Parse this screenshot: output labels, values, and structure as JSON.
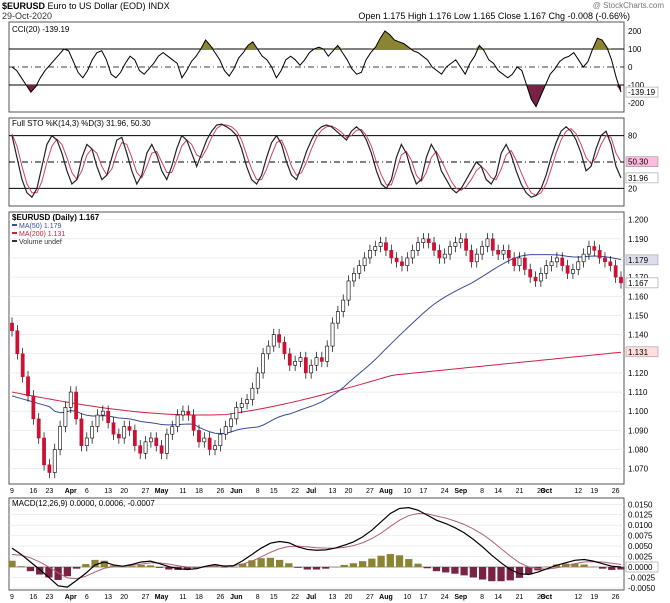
{
  "header": {
    "symbol": "$EURUSD",
    "name": "Euro to US Dollar (EOD)",
    "exchange": "INDX",
    "date": "29-Oct-2020",
    "quote": "Open 1.175  High 1.176  Low 1.165  Close 1.167  Chg -0.008 (-0.66%)",
    "credit": "@ StockCharts.com"
  },
  "colors": {
    "up": "#ffffff",
    "down": "#cc1133",
    "wick": "#000000",
    "ma50": "#3a4a99",
    "ma200": "#cc2244",
    "olive": "#8b8432",
    "maroon": "#7a2246",
    "grid": "#dde3ee"
  },
  "chart_data": [
    {
      "type": "line",
      "panel": "CCI",
      "label": "CCI(20) -139.19",
      "value_label": "-139.19",
      "ylim": [
        -250,
        250
      ],
      "ticks": [
        200,
        100,
        0,
        -100,
        -200
      ],
      "ref_lines": [
        100,
        0,
        -100
      ],
      "values": [
        0,
        -20,
        -60,
        -100,
        -140,
        -110,
        -60,
        -20,
        10,
        40,
        70,
        100,
        90,
        30,
        -30,
        -60,
        -20,
        40,
        80,
        90,
        40,
        -40,
        -60,
        -30,
        20,
        60,
        40,
        -20,
        -40,
        -10,
        20,
        60,
        80,
        60,
        40,
        20,
        -60,
        -20,
        30,
        60,
        100,
        150,
        120,
        80,
        40,
        -20,
        -50,
        -10,
        50,
        80,
        120,
        140,
        100,
        60,
        40,
        0,
        -60,
        -20,
        40,
        60,
        40,
        10,
        40,
        80,
        100,
        110,
        100,
        60,
        90,
        120,
        80,
        40,
        -10,
        -40,
        -30,
        40,
        80,
        110,
        160,
        200,
        180,
        150,
        140,
        130,
        110,
        90,
        80,
        60,
        40,
        0,
        -20,
        -40,
        0,
        20,
        40,
        0,
        -40,
        20,
        60,
        120,
        90,
        40,
        20,
        -20,
        -40,
        -60,
        -40,
        0,
        -20,
        -100,
        -180,
        -220,
        -160,
        -100,
        -40,
        -10,
        30,
        50,
        60,
        80,
        40,
        0,
        30,
        100,
        160,
        150,
        110,
        40,
        -60,
        -139.19
      ]
    },
    {
      "type": "line",
      "panel": "Full STO",
      "label": "Full STO %K(14,3) %D(3) 31.96, 50.30",
      "k_label": "31.96",
      "d_label": "50.30",
      "ylim": [
        0,
        100
      ],
      "ticks": [
        80,
        50,
        20
      ],
      "ref_lines": [
        80,
        50,
        20
      ],
      "k": [
        80,
        55,
        30,
        15,
        10,
        20,
        45,
        70,
        80,
        75,
        60,
        40,
        25,
        30,
        55,
        70,
        65,
        45,
        30,
        35,
        55,
        75,
        78,
        60,
        40,
        25,
        35,
        60,
        70,
        58,
        40,
        30,
        45,
        65,
        80,
        75,
        60,
        45,
        60,
        75,
        85,
        92,
        93,
        90,
        86,
        80,
        65,
        45,
        30,
        25,
        35,
        55,
        72,
        80,
        70,
        50,
        35,
        30,
        45,
        62,
        75,
        85,
        90,
        92,
        90,
        85,
        80,
        75,
        85,
        90,
        85,
        75,
        60,
        40,
        25,
        20,
        30,
        55,
        70,
        60,
        40,
        25,
        30,
        55,
        70,
        60,
        40,
        30,
        20,
        15,
        20,
        30,
        40,
        50,
        45,
        30,
        25,
        35,
        60,
        70,
        58,
        40,
        25,
        15,
        10,
        12,
        20,
        35,
        55,
        72,
        85,
        90,
        85,
        75,
        60,
        40,
        45,
        65,
        80,
        85,
        70,
        45,
        31.96
      ],
      "d": [
        82,
        68,
        45,
        25,
        15,
        15,
        28,
        50,
        68,
        76,
        70,
        55,
        38,
        30,
        40,
        58,
        65,
        60,
        45,
        35,
        42,
        60,
        72,
        70,
        55,
        38,
        32,
        45,
        60,
        62,
        50,
        38,
        38,
        52,
        68,
        75,
        70,
        58,
        55,
        65,
        78,
        88,
        92,
        92,
        90,
        85,
        75,
        58,
        42,
        30,
        30,
        42,
        58,
        72,
        75,
        62,
        45,
        35,
        38,
        50,
        65,
        78,
        86,
        90,
        91,
        88,
        84,
        78,
        80,
        86,
        87,
        80,
        68,
        50,
        35,
        24,
        24,
        40,
        58,
        62,
        52,
        35,
        28,
        38,
        55,
        62,
        52,
        40,
        28,
        20,
        18,
        22,
        30,
        40,
        45,
        40,
        32,
        30,
        42,
        58,
        63,
        52,
        38,
        25,
        15,
        12,
        15,
        25,
        42,
        60,
        75,
        85,
        88,
        82,
        70,
        55,
        48,
        55,
        70,
        80,
        78,
        60,
        50.3
      ]
    },
    {
      "type": "candlestick",
      "panel": "Price",
      "label": "$EURUSD (Daily) 1.167",
      "legend": [
        "MA(50) 1.179",
        "MA(200) 1.131",
        "Volume undef"
      ],
      "ylim": [
        1.062,
        1.204
      ],
      "ticks": [
        1.2,
        1.19,
        1.18,
        1.17,
        1.16,
        1.15,
        1.14,
        1.13,
        1.12,
        1.11,
        1.1,
        1.09,
        1.08,
        1.07
      ],
      "close_label": "1.167",
      "ma50_label": "1.179",
      "ma200_label": "1.131",
      "x_labels": [
        [
          "9",
          0
        ],
        [
          "16",
          5
        ],
        [
          "23",
          10
        ],
        [
          "Apr",
          15
        ],
        [
          "6",
          20
        ],
        [
          "13",
          25
        ],
        [
          "20",
          30
        ],
        [
          "27",
          35
        ],
        [
          "May",
          40
        ],
        [
          "11",
          45
        ],
        [
          "18",
          50
        ],
        [
          "26",
          55
        ],
        [
          "Jun",
          60
        ],
        [
          "8",
          65
        ],
        [
          "15",
          70
        ],
        [
          "22",
          75
        ],
        [
          "Jul",
          80
        ],
        [
          "13",
          85
        ],
        [
          "20",
          90
        ],
        [
          "27",
          95
        ],
        [
          "Aug",
          100
        ],
        [
          "10",
          105
        ],
        [
          "17",
          110
        ],
        [
          "24",
          115
        ],
        [
          "Sep",
          120
        ],
        [
          "8",
          125
        ],
        [
          "14",
          130
        ],
        [
          "21",
          135
        ],
        [
          "28",
          140
        ],
        [
          "Oct",
          142
        ],
        [
          "12",
          150
        ],
        [
          "19",
          155
        ],
        [
          "26",
          160
        ]
      ],
      "close": [
        1.142,
        1.13,
        1.118,
        1.108,
        1.096,
        1.086,
        1.072,
        1.068,
        1.08,
        1.092,
        1.102,
        1.11,
        1.096,
        1.082,
        1.086,
        1.092,
        1.098,
        1.1,
        1.094,
        1.088,
        1.086,
        1.092,
        1.09,
        1.082,
        1.078,
        1.084,
        1.086,
        1.082,
        1.078,
        1.088,
        1.092,
        1.098,
        1.1,
        1.098,
        1.09,
        1.084,
        1.086,
        1.08,
        1.082,
        1.088,
        1.092,
        1.096,
        1.102,
        1.104,
        1.106,
        1.112,
        1.12,
        1.13,
        1.134,
        1.14,
        1.136,
        1.13,
        1.124,
        1.126,
        1.128,
        1.12,
        1.124,
        1.128,
        1.126,
        1.134,
        1.146,
        1.152,
        1.158,
        1.168,
        1.172,
        1.176,
        1.18,
        1.184,
        1.186,
        1.188,
        1.184,
        1.18,
        1.178,
        1.176,
        1.18,
        1.184,
        1.188,
        1.19,
        1.188,
        1.184,
        1.18,
        1.182,
        1.186,
        1.188,
        1.19,
        1.184,
        1.178,
        1.182,
        1.186,
        1.19,
        1.184,
        1.182,
        1.184,
        1.18,
        1.176,
        1.18,
        1.174,
        1.17,
        1.168,
        1.172,
        1.176,
        1.178,
        1.18,
        1.176,
        1.172,
        1.174,
        1.178,
        1.182,
        1.186,
        1.184,
        1.18,
        1.178,
        1.176,
        1.17,
        1.167
      ]
    },
    {
      "type": "line",
      "panel": "MACD",
      "label": "MACD(12,26,9) 0.0000, 0.0006, -0.0007",
      "value_label": "0.0000",
      "ylim": [
        -0.0055,
        0.0165
      ],
      "ticks": [
        0.015,
        0.0125,
        0.01,
        0.0075,
        0.005,
        0.0025,
        0,
        -0.0025,
        -0.005
      ],
      "macd": [
        0.0045,
        0.003,
        0.0012,
        -0.0006,
        -0.0025,
        -0.0045,
        -0.0048,
        -0.0032,
        -0.0015,
        0.0005,
        0.0012,
        0.0005,
        0.0002,
        0.0006,
        0.0012,
        0.0014,
        0.0008,
        0.0001,
        -0.0004,
        -0.0006,
        -0.0004,
        0.0002,
        0.0006,
        0.0002,
        0.0003,
        0.0015,
        0.003,
        0.0045,
        0.0057,
        0.0061,
        0.0058,
        0.0048,
        0.0042,
        0.004,
        0.0041,
        0.0045,
        0.0052,
        0.006,
        0.0072,
        0.0088,
        0.0108,
        0.0128,
        0.014,
        0.0142,
        0.0136,
        0.0124,
        0.0112,
        0.0104,
        0.0094,
        0.0082,
        0.0066,
        0.0048,
        0.0028,
        0.001,
        -0.0006,
        -0.0016,
        -0.0018,
        -0.0012,
        -0.0004,
        0.0004,
        0.001,
        0.0016,
        0.0018,
        0.0014,
        0.0008,
        0.0002,
        0.0
      ],
      "signal": [
        0.003,
        0.0028,
        0.0022,
        0.0012,
        0.0,
        -0.0014,
        -0.0026,
        -0.0028,
        -0.0022,
        -0.0012,
        -0.0003,
        0.0001,
        0.0002,
        0.0004,
        0.0007,
        0.001,
        0.001,
        0.0007,
        0.0003,
        0.0,
        -0.0001,
        0.0,
        0.0003,
        0.0003,
        0.0003,
        0.0007,
        0.0014,
        0.0024,
        0.0035,
        0.0044,
        0.0049,
        0.005,
        0.0048,
        0.0046,
        0.0045,
        0.0045,
        0.0047,
        0.0051,
        0.0058,
        0.0068,
        0.0081,
        0.0097,
        0.0112,
        0.0123,
        0.0128,
        0.0127,
        0.0122,
        0.0117,
        0.011,
        0.0102,
        0.0091,
        0.0078,
        0.0062,
        0.0044,
        0.0026,
        0.001,
        0.0,
        -0.0004,
        -0.0005,
        -0.0002,
        0.0002,
        0.0008,
        0.0012,
        0.0013,
        0.0012,
        0.0009,
        0.0006
      ],
      "histogram_note": "MACD minus signal"
    }
  ]
}
